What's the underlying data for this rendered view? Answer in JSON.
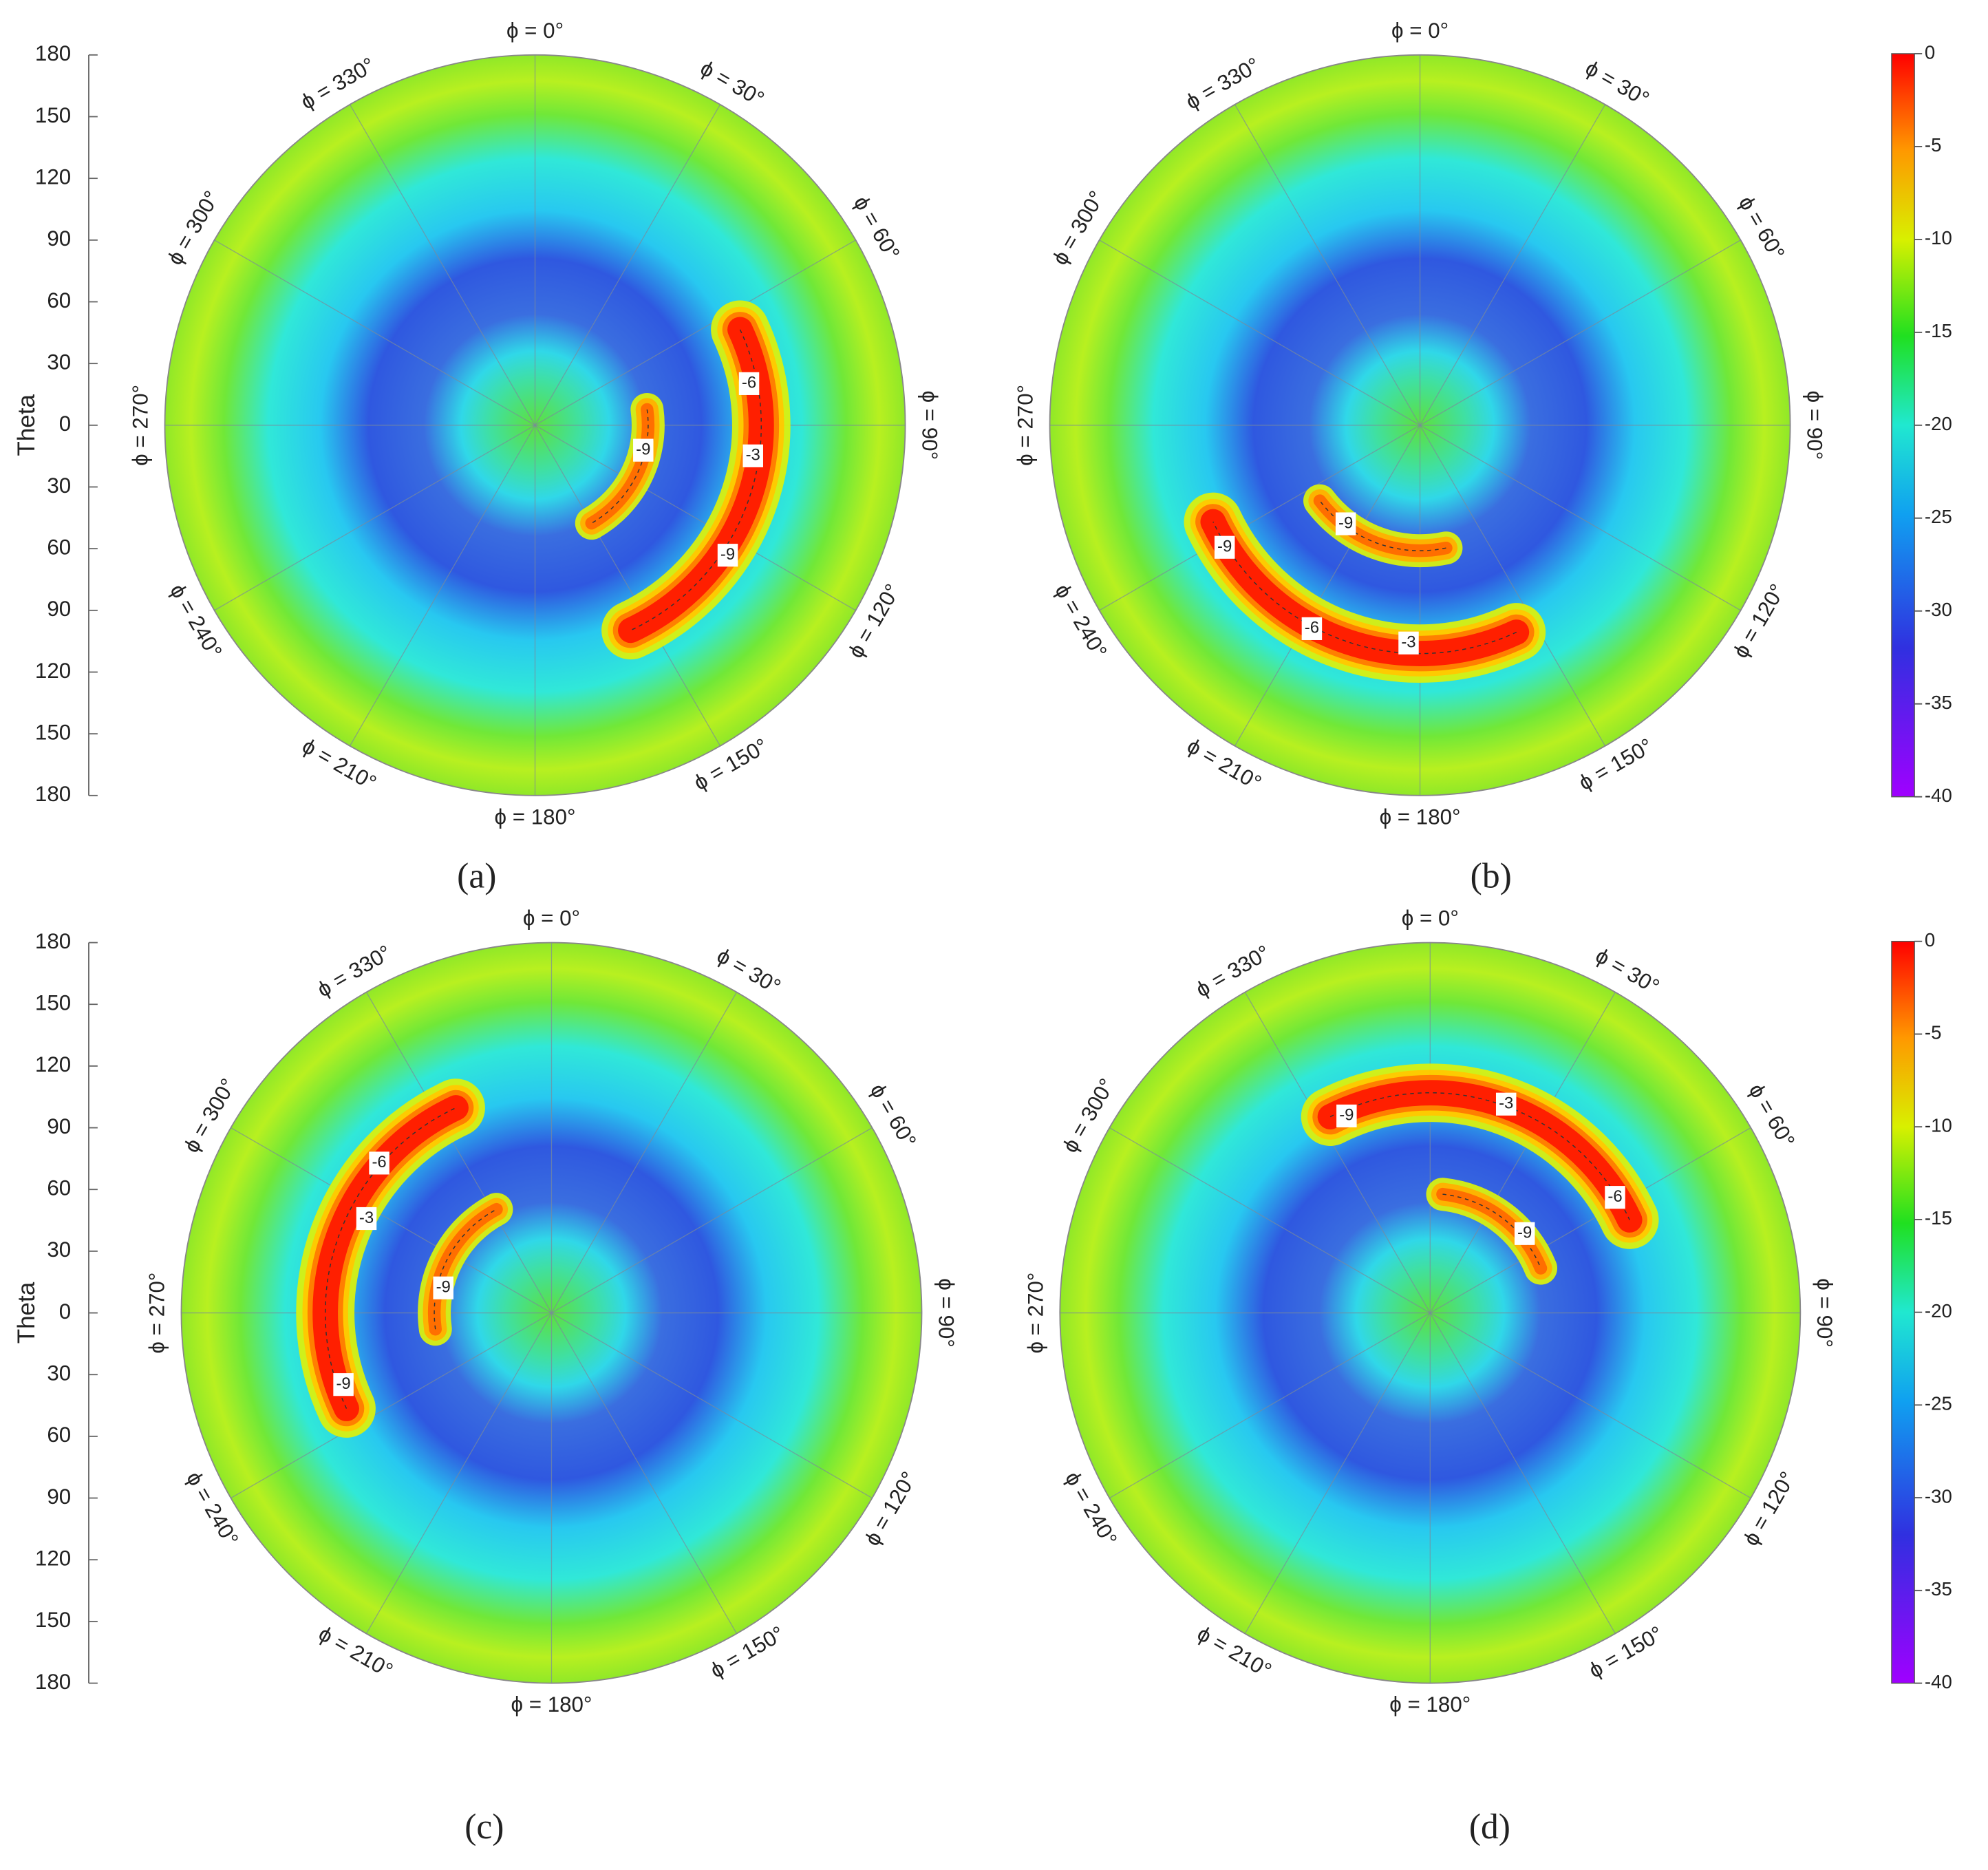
{
  "charts": [
    {
      "type": "polar-contour",
      "panel_label": "(a)",
      "rlim": [
        0,
        180
      ],
      "theta_axis": {
        "label": "Theta",
        "ylim": [
          -180,
          180
        ],
        "yticks": [
          180,
          150,
          120,
          90,
          60,
          30,
          0,
          {
            "value": -30,
            "label": "30"
          },
          {
            "value": -60,
            "label": "60"
          },
          {
            "value": -90,
            "label": "90"
          },
          {
            "value": -120,
            "label": "120"
          },
          {
            "value": -150,
            "label": "150"
          },
          {
            "value": -180,
            "label": "180"
          }
        ]
      },
      "phi_ticks": [
        {
          "value": 0,
          "label": "ϕ = 0°"
        },
        {
          "value": 30,
          "label": "ϕ = 30°"
        },
        {
          "value": 60,
          "label": "ϕ = 60°"
        },
        {
          "value": 90,
          "label": "ϕ = 90°"
        },
        {
          "value": 120,
          "label": "ϕ = 120°"
        },
        {
          "value": 150,
          "label": "ϕ = 150°"
        },
        {
          "value": 180,
          "label": "ϕ = 180°"
        },
        {
          "value": 210,
          "label": "ϕ = 210°"
        },
        {
          "value": 240,
          "label": "ϕ = 240°"
        },
        {
          "value": 270,
          "label": "ϕ = 270°"
        },
        {
          "value": 300,
          "label": "ϕ = 300°"
        },
        {
          "value": 330,
          "label": "ϕ = 330°"
        }
      ],
      "contours": [
        {
          "level": -3,
          "theta": 110,
          "phi_range": [
            65,
            155
          ]
        },
        {
          "level": -9,
          "theta": 55,
          "phi_range": [
            82,
            150
          ]
        }
      ],
      "contour_labels": [
        {
          "value": -6,
          "theta": 106,
          "phi": 79
        },
        {
          "value": -3,
          "theta": 107,
          "phi": 98
        },
        {
          "value": -9,
          "theta": 54,
          "phi": 103
        },
        {
          "value": -9,
          "theta": 113,
          "phi": 124
        }
      ]
    },
    {
      "type": "polar-contour",
      "panel_label": "(b)",
      "rlim": [
        0,
        180
      ],
      "phi_ticks": [
        {
          "value": 0,
          "label": "ϕ = 0°"
        },
        {
          "value": 30,
          "label": "ϕ = 30°"
        },
        {
          "value": 60,
          "label": "ϕ = 60°"
        },
        {
          "value": 90,
          "label": "ϕ = 90°"
        },
        {
          "value": 120,
          "label": "ϕ = 120°"
        },
        {
          "value": 150,
          "label": "ϕ = 150°"
        },
        {
          "value": 180,
          "label": "ϕ = 180°"
        },
        {
          "value": 210,
          "label": "ϕ = 210°"
        },
        {
          "value": 240,
          "label": "ϕ = 240°"
        },
        {
          "value": 270,
          "label": "ϕ = 270°"
        },
        {
          "value": 300,
          "label": "ϕ = 300°"
        },
        {
          "value": 330,
          "label": "ϕ = 330°"
        }
      ],
      "contours": [
        {
          "level": -3,
          "theta": 111,
          "phi_range": [
            155,
            245
          ]
        },
        {
          "level": -9,
          "theta": 61,
          "phi_range": [
            168,
            233
          ]
        }
      ],
      "contour_labels": [
        {
          "value": -9,
          "theta": 60,
          "phi": 217
        },
        {
          "value": -9,
          "theta": 112,
          "phi": 238
        },
        {
          "value": -6,
          "theta": 112,
          "phi": 208
        },
        {
          "value": -3,
          "theta": 106,
          "phi": 183
        }
      ],
      "colorbar": {
        "clim": [
          -40,
          0
        ],
        "cticks": [
          0,
          -5,
          -10,
          -15,
          -20,
          -25,
          -30,
          -35,
          -40
        ]
      }
    },
    {
      "type": "polar-contour",
      "panel_label": "(c)",
      "rlim": [
        0,
        180
      ],
      "theta_axis": {
        "label": "Theta",
        "ylim": [
          -180,
          180
        ],
        "yticks": [
          180,
          150,
          120,
          90,
          60,
          30,
          0,
          {
            "value": -30,
            "label": "30"
          },
          {
            "value": -60,
            "label": "60"
          },
          {
            "value": -90,
            "label": "90"
          },
          {
            "value": -120,
            "label": "120"
          },
          {
            "value": -150,
            "label": "150"
          },
          {
            "value": -180,
            "label": "180"
          }
        ]
      },
      "phi_ticks": [
        {
          "value": 0,
          "label": "ϕ = 0°"
        },
        {
          "value": 30,
          "label": "ϕ = 30°"
        },
        {
          "value": 60,
          "label": "ϕ = 60°"
        },
        {
          "value": 90,
          "label": "ϕ = 90°"
        },
        {
          "value": 120,
          "label": "ϕ = 120°"
        },
        {
          "value": 150,
          "label": "ϕ = 150°"
        },
        {
          "value": 180,
          "label": "ϕ = 180°"
        },
        {
          "value": 210,
          "label": "ϕ = 210°"
        },
        {
          "value": 240,
          "label": "ϕ = 240°"
        },
        {
          "value": 270,
          "label": "ϕ = 270°"
        },
        {
          "value": 300,
          "label": "ϕ = 300°"
        },
        {
          "value": 330,
          "label": "ϕ = 330°"
        }
      ],
      "contours": [
        {
          "level": -3,
          "theta": 110,
          "phi_range": [
            245,
            335
          ]
        },
        {
          "level": -9,
          "theta": 57,
          "phi_range": [
            262,
            332
          ]
        }
      ],
      "contour_labels": [
        {
          "value": -6,
          "theta": 111,
          "phi": 311
        },
        {
          "value": -3,
          "theta": 101,
          "phi": 297
        },
        {
          "value": -9,
          "theta": 54,
          "phi": 283
        },
        {
          "value": -9,
          "theta": 107,
          "phi": 251
        }
      ]
    },
    {
      "type": "polar-contour",
      "panel_label": "(d)",
      "rlim": [
        0,
        180
      ],
      "phi_ticks": [
        {
          "value": 0,
          "label": "ϕ = 0°"
        },
        {
          "value": 30,
          "label": "ϕ = 30°"
        },
        {
          "value": 60,
          "label": "ϕ = 60°"
        },
        {
          "value": 90,
          "label": "ϕ = 90°"
        },
        {
          "value": 120,
          "label": "ϕ = 120°"
        },
        {
          "value": 150,
          "label": "ϕ = 150°"
        },
        {
          "value": 180,
          "label": "ϕ = 180°"
        },
        {
          "value": 210,
          "label": "ϕ = 210°"
        },
        {
          "value": 240,
          "label": "ϕ = 240°"
        },
        {
          "value": 270,
          "label": "ϕ = 270°"
        },
        {
          "value": 300,
          "label": "ϕ = 300°"
        },
        {
          "value": 330,
          "label": "ϕ = 330°"
        }
      ],
      "contours": [
        {
          "level": -3,
          "theta": 107,
          "phi_range": [
            -27,
            65
          ]
        },
        {
          "level": -9,
          "theta": 58,
          "phi_range": [
            6,
            68
          ]
        }
      ],
      "contour_labels": [
        {
          "value": -9,
          "theta": 104,
          "phi": 337
        },
        {
          "value": -3,
          "theta": 108,
          "phi": 20
        },
        {
          "value": -6,
          "theta": 106,
          "phi": 58
        },
        {
          "value": -9,
          "theta": 60,
          "phi": 50
        }
      ],
      "colorbar": {
        "clim": [
          -40,
          0
        ],
        "cticks": [
          0,
          -5,
          -10,
          -15,
          -20,
          -25,
          -30,
          -35,
          -40
        ]
      }
    }
  ]
}
